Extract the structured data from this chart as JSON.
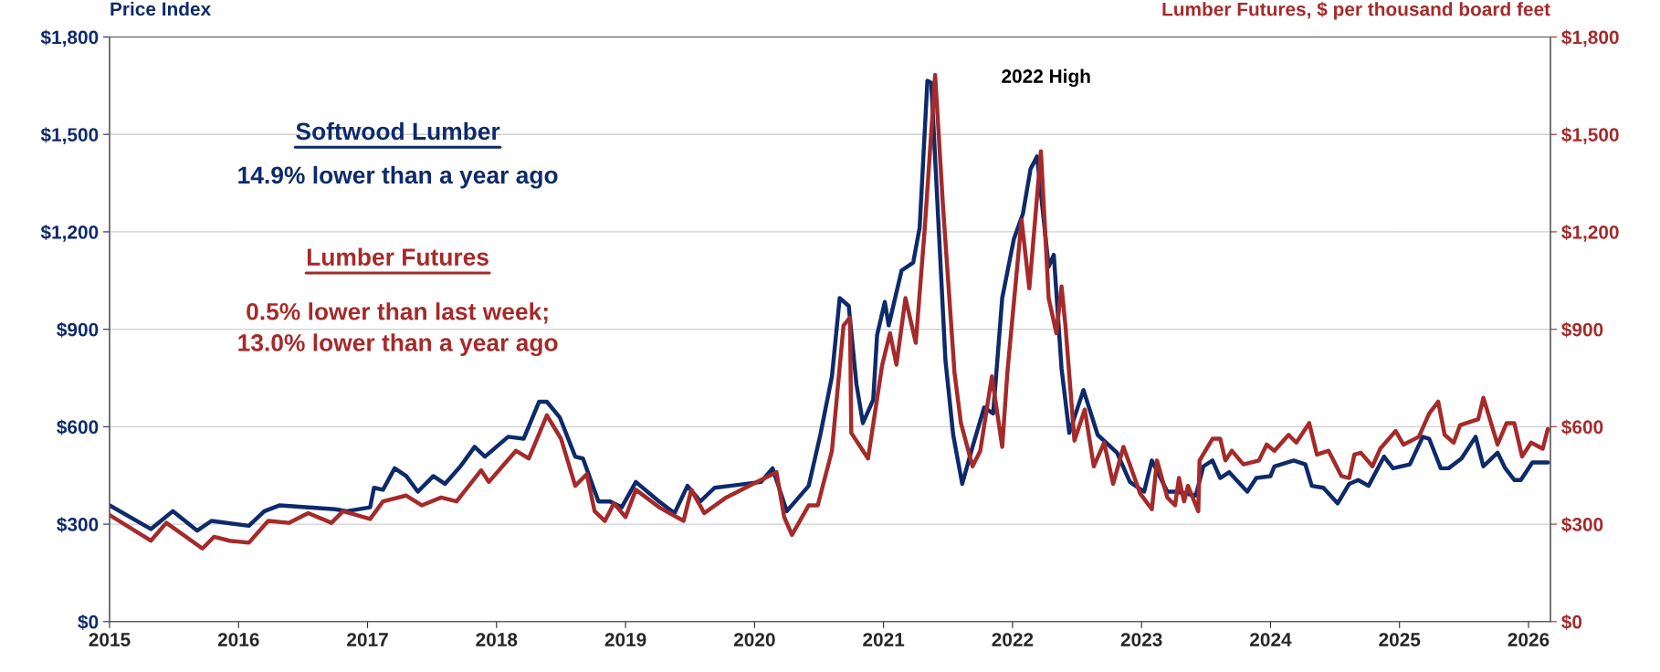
{
  "chart_data": {
    "type": "line",
    "ylabel": "Price Index",
    "y2label": "Lumber Futures, $ per thousand board feet",
    "annotations": [
      "Softwood Lumber",
      "14.9% lower than a year ago",
      "Lumber Futures",
      "0.5% lower than last week;\n13.0% lower than a year ago",
      "2022 High"
    ],
    "xlim": [
      2015,
      2026.17
    ],
    "xticks": [
      2015,
      2016,
      2017,
      2018,
      2019,
      2020,
      2021,
      2022,
      2023,
      2024,
      2025,
      2026
    ],
    "ylim": [
      0,
      1800
    ],
    "yticks": [
      {
        "value": 0,
        "label": "$0"
      },
      {
        "value": 300,
        "label": "$300"
      },
      {
        "value": 600,
        "label": "$600"
      },
      {
        "value": 900,
        "label": "$900"
      },
      {
        "value": 1200,
        "label": "$1,200"
      },
      {
        "value": 1500,
        "label": "$1,500"
      },
      {
        "value": 1800,
        "label": "$1,800"
      }
    ],
    "y2lim": [
      0,
      1800
    ],
    "y2ticks": [
      {
        "value": 0,
        "label": "$0"
      },
      {
        "value": 300,
        "label": "$300"
      },
      {
        "value": 600,
        "label": "$600"
      },
      {
        "value": 900,
        "label": "$900"
      },
      {
        "value": 1200,
        "label": "$1,200"
      },
      {
        "value": 1500,
        "label": "$1,500"
      },
      {
        "value": 1800,
        "label": "$1,800"
      }
    ],
    "grid": "y",
    "legend": false,
    "series": [
      {
        "color": "#0d2a6b",
        "x": [
          2015.0,
          2015.32,
          2015.49,
          2015.68,
          2015.79,
          2016.08,
          2016.2,
          2016.32,
          2016.75,
          2016.84,
          2017.02,
          2017.05,
          2017.12,
          2017.21,
          2017.3,
          2017.39,
          2017.51,
          2017.6,
          2017.72,
          2017.83,
          2017.91,
          2018.09,
          2018.21,
          2018.33,
          2018.39,
          2018.49,
          2018.61,
          2018.67,
          2018.79,
          2018.88,
          2018.97,
          2019.08,
          2019.26,
          2019.38,
          2019.48,
          2019.58,
          2019.69,
          2019.81,
          2020.05,
          2020.14,
          2020.25,
          2020.42,
          2020.51,
          2020.6,
          2020.66,
          2020.73,
          2020.79,
          2020.84,
          2020.92,
          2020.95,
          2021.01,
          2021.04,
          2021.14,
          2021.23,
          2021.28,
          2021.34,
          2021.37,
          2021.48,
          2021.54,
          2021.61,
          2021.69,
          2021.78,
          2021.85,
          2021.92,
          2022.01,
          2022.08,
          2022.14,
          2022.19,
          2022.28,
          2022.32,
          2022.38,
          2022.44,
          2022.55,
          2022.66,
          2022.81,
          2022.91,
          2023.02,
          2023.08,
          2023.2,
          2023.27,
          2023.42,
          2023.48,
          2023.55,
          2023.61,
          2023.68,
          2023.82,
          2023.89,
          2024.0,
          2024.03,
          2024.18,
          2024.27,
          2024.32,
          2024.41,
          2024.52,
          2024.61,
          2024.68,
          2024.76,
          2024.88,
          2024.95,
          2025.08,
          2025.18,
          2025.23,
          2025.32,
          2025.38,
          2025.48,
          2025.59,
          2025.65,
          2025.76,
          2025.82,
          2025.89,
          2025.94,
          2025.98,
          2026.03,
          2026.15
        ],
        "values": [
          358,
          285,
          340,
          280,
          310,
          295,
          340,
          358,
          346,
          340,
          352,
          412,
          406,
          472,
          448,
          400,
          448,
          424,
          478,
          538,
          508,
          569,
          563,
          677,
          677,
          629,
          508,
          502,
          370,
          370,
          352,
          430,
          370,
          334,
          418,
          370,
          412,
          418,
          430,
          472,
          340,
          418,
          575,
          755,
          996,
          972,
          731,
          611,
          683,
          882,
          984,
          912,
          1081,
          1105,
          1213,
          1665,
          1659,
          804,
          575,
          424,
          538,
          659,
          641,
          996,
          1177,
          1255,
          1394,
          1432,
          1093,
          1129,
          779,
          581,
          713,
          575,
          520,
          430,
          400,
          496,
          400,
          400,
          388,
          478,
          496,
          442,
          460,
          400,
          442,
          448,
          478,
          496,
          484,
          418,
          412,
          364,
          424,
          436,
          418,
          508,
          472,
          484,
          569,
          563,
          472,
          472,
          502,
          569,
          478,
          520,
          472,
          436,
          436,
          460,
          490,
          490
        ]
      },
      {
        "color": "#a52a2a",
        "axis": "y2",
        "x": [
          2015.0,
          2015.32,
          2015.44,
          2015.72,
          2015.81,
          2015.93,
          2016.08,
          2016.23,
          2016.39,
          2016.54,
          2016.72,
          2016.81,
          2017.02,
          2017.12,
          2017.3,
          2017.42,
          2017.57,
          2017.69,
          2017.88,
          2017.94,
          2018.15,
          2018.25,
          2018.39,
          2018.5,
          2018.61,
          2018.7,
          2018.76,
          2018.84,
          2018.91,
          2019.0,
          2019.08,
          2019.26,
          2019.45,
          2019.51,
          2019.61,
          2019.78,
          2019.96,
          2020.17,
          2020.23,
          2020.29,
          2020.42,
          2020.49,
          2020.6,
          2020.69,
          2020.74,
          2020.75,
          2020.88,
          2020.99,
          2021.05,
          2021.1,
          2021.17,
          2021.25,
          2021.32,
          2021.4,
          2021.46,
          2021.55,
          2021.6,
          2021.69,
          2021.75,
          2021.84,
          2021.92,
          2021.96,
          2022.07,
          2022.13,
          2022.22,
          2022.28,
          2022.34,
          2022.38,
          2022.41,
          2022.48,
          2022.56,
          2022.63,
          2022.71,
          2022.78,
          2022.86,
          2022.99,
          2023.08,
          2023.12,
          2023.2,
          2023.26,
          2023.29,
          2023.33,
          2023.36,
          2023.44,
          2023.45,
          2023.55,
          2023.61,
          2023.65,
          2023.7,
          2023.79,
          2023.91,
          2023.97,
          2024.03,
          2024.14,
          2024.2,
          2024.3,
          2024.36,
          2024.45,
          2024.55,
          2024.61,
          2024.65,
          2024.7,
          2024.79,
          2024.85,
          2024.97,
          2025.03,
          2025.15,
          2025.23,
          2025.3,
          2025.35,
          2025.42,
          2025.47,
          2025.61,
          2025.65,
          2025.76,
          2025.83,
          2025.89,
          2025.95,
          2026.02,
          2026.11,
          2026.15
        ],
        "values": [
          328,
          249,
          304,
          225,
          261,
          249,
          243,
          310,
          304,
          334,
          304,
          340,
          316,
          370,
          388,
          358,
          382,
          370,
          466,
          430,
          526,
          502,
          635,
          563,
          418,
          454,
          340,
          310,
          364,
          322,
          406,
          352,
          310,
          406,
          334,
          382,
          418,
          460,
          322,
          267,
          358,
          358,
          526,
          912,
          936,
          581,
          502,
          791,
          888,
          791,
          996,
          858,
          1213,
          1683,
          1285,
          767,
          611,
          478,
          526,
          755,
          538,
          767,
          1237,
          1026,
          1448,
          996,
          888,
          1032,
          912,
          557,
          653,
          478,
          551,
          424,
          538,
          394,
          346,
          496,
          382,
          358,
          442,
          370,
          418,
          340,
          496,
          563,
          563,
          496,
          526,
          484,
          496,
          545,
          526,
          575,
          551,
          611,
          514,
          526,
          448,
          442,
          514,
          520,
          478,
          532,
          587,
          545,
          569,
          641,
          677,
          575,
          551,
          605,
          623,
          689,
          545,
          611,
          611,
          508,
          551,
          532,
          593
        ]
      }
    ]
  }
}
